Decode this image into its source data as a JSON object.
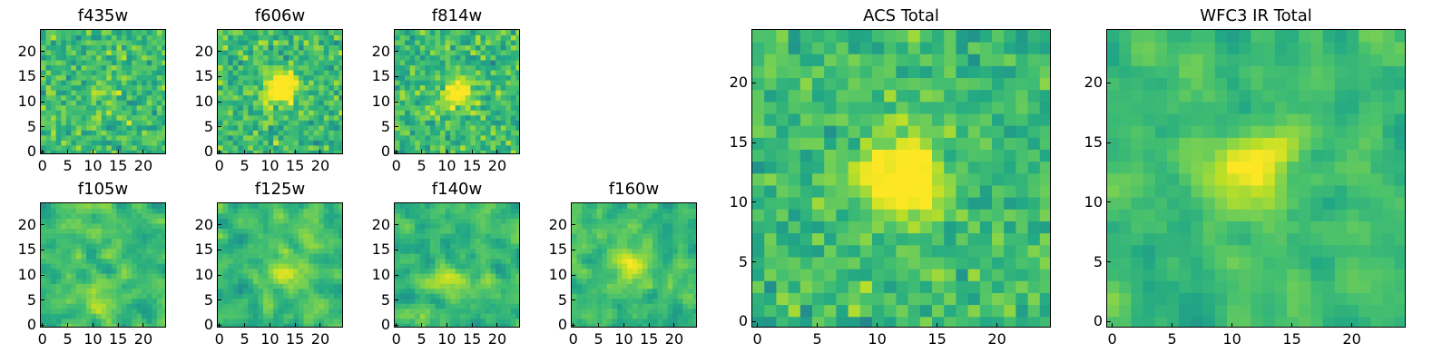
{
  "chart_data": [
    {
      "type": "heatmap",
      "title": "f435w",
      "grid": false,
      "colormap": "viridis",
      "xlim": [
        -0.5,
        24.5
      ],
      "ylim": [
        -0.5,
        24.5
      ],
      "xticks": [
        0,
        5,
        10,
        15,
        20
      ],
      "yticks": [
        0,
        5,
        10,
        15,
        20
      ],
      "pixels": 25,
      "source_center": [
        12,
        13
      ],
      "source_strength": 0.12,
      "noise_level": 0.55,
      "smoothing": 0,
      "seed": 11
    },
    {
      "type": "heatmap",
      "title": "f606w",
      "grid": false,
      "colormap": "viridis",
      "xlim": [
        -0.5,
        24.5
      ],
      "ylim": [
        -0.5,
        24.5
      ],
      "xticks": [
        0,
        5,
        10,
        15,
        20
      ],
      "yticks": [
        0,
        5,
        10,
        15,
        20
      ],
      "pixels": 25,
      "source_center": [
        12,
        13
      ],
      "source_strength": 0.55,
      "noise_level": 0.55,
      "smoothing": 0,
      "seed": 23
    },
    {
      "type": "heatmap",
      "title": "f814w",
      "grid": false,
      "colormap": "viridis",
      "xlim": [
        -0.5,
        24.5
      ],
      "ylim": [
        -0.5,
        24.5
      ],
      "xticks": [
        0,
        5,
        10,
        15,
        20
      ],
      "yticks": [
        0,
        5,
        10,
        15,
        20
      ],
      "pixels": 25,
      "source_center": [
        12,
        12
      ],
      "source_strength": 0.4,
      "noise_level": 0.55,
      "smoothing": 0,
      "seed": 37
    },
    {
      "type": "heatmap",
      "title": "f105w",
      "grid": false,
      "colormap": "viridis",
      "xlim": [
        -0.5,
        24.5
      ],
      "ylim": [
        -0.5,
        24.5
      ],
      "xticks": [
        0,
        5,
        10,
        15,
        20
      ],
      "yticks": [
        0,
        5,
        10,
        15,
        20
      ],
      "pixels": 25,
      "source_center": [
        11,
        5
      ],
      "source_strength": 0.2,
      "noise_level": 0.55,
      "smoothing": 1,
      "seed": 41
    },
    {
      "type": "heatmap",
      "title": "f125w",
      "grid": false,
      "colormap": "viridis",
      "xlim": [
        -0.5,
        24.5
      ],
      "ylim": [
        -0.5,
        24.5
      ],
      "xticks": [
        0,
        5,
        10,
        15,
        20
      ],
      "yticks": [
        0,
        5,
        10,
        15,
        20
      ],
      "pixels": 25,
      "source_center": [
        13,
        11
      ],
      "source_strength": 0.3,
      "noise_level": 0.55,
      "smoothing": 1,
      "seed": 53
    },
    {
      "type": "heatmap",
      "title": "f140w",
      "grid": false,
      "colormap": "viridis",
      "xlim": [
        -0.5,
        24.5
      ],
      "ylim": [
        -0.5,
        24.5
      ],
      "xticks": [
        0,
        5,
        10,
        15,
        20
      ],
      "yticks": [
        0,
        5,
        10,
        15,
        20
      ],
      "pixels": 25,
      "source_center": [
        10,
        9
      ],
      "source_strength": 0.25,
      "noise_level": 0.55,
      "smoothing": 1,
      "seed": 67
    },
    {
      "type": "heatmap",
      "title": "f160w",
      "grid": false,
      "colormap": "viridis",
      "xlim": [
        -0.5,
        24.5
      ],
      "ylim": [
        -0.5,
        24.5
      ],
      "xticks": [
        0,
        5,
        10,
        15,
        20
      ],
      "yticks": [
        0,
        5,
        10,
        15,
        20
      ],
      "pixels": 25,
      "source_center": [
        11,
        12
      ],
      "source_strength": 0.3,
      "noise_level": 0.55,
      "smoothing": 1,
      "seed": 79
    },
    {
      "type": "heatmap",
      "title": "ACS Total",
      "grid": false,
      "colormap": "viridis",
      "xlim": [
        -0.5,
        24.5
      ],
      "ylim": [
        -0.5,
        24.5
      ],
      "xticks": [
        0,
        5,
        10,
        15,
        20
      ],
      "yticks": [
        0,
        5,
        10,
        15,
        20
      ],
      "pixels": 25,
      "source_center": [
        12,
        12
      ],
      "source_strength": 0.55,
      "noise_level": 0.45,
      "smoothing": 0,
      "seed": 97
    },
    {
      "type": "heatmap",
      "title": "WFC3 IR Total",
      "grid": false,
      "colormap": "viridis",
      "xlim": [
        -0.5,
        24.5
      ],
      "ylim": [
        -0.5,
        24.5
      ],
      "xticks": [
        0,
        5,
        10,
        15,
        20
      ],
      "yticks": [
        0,
        5,
        10,
        15,
        20
      ],
      "pixels": 25,
      "source_center": [
        12,
        13
      ],
      "source_strength": 0.4,
      "noise_level": 0.45,
      "smoothing": 1,
      "seed": 113
    }
  ]
}
